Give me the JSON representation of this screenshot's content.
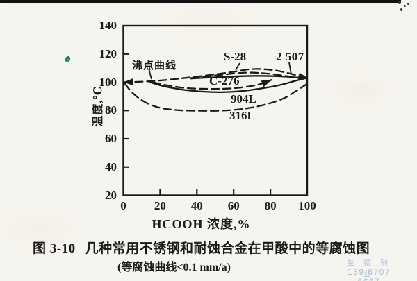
{
  "colors": {
    "ink": "#1a1a1a",
    "paper": "#f6f4ee",
    "watermark_blue": "#a9bede",
    "speck_green": "#2f9b77"
  },
  "chart_data": {
    "type": "line",
    "title": "",
    "xlabel": "HCOOH 浓度,%",
    "ylabel": "温度,℃",
    "xlim": [
      0,
      100
    ],
    "ylim": [
      20,
      140
    ],
    "xticks": [
      0,
      20,
      40,
      60,
      80,
      100
    ],
    "yticks": [
      140,
      120,
      100,
      80,
      60,
      40,
      20
    ],
    "grid": false,
    "legend": "labels-on-curves",
    "note": "iso-corrosion curves < 0.1 mm/a in formic acid; x = HCOOH concentration %, y = temperature °C",
    "series": [
      {
        "id": "boiling",
        "label": "沸点曲线",
        "style": "dashed",
        "arrow_start": true,
        "arrow_end": true,
        "points": [
          [
            0,
            100
          ],
          [
            8,
            100.3
          ],
          [
            18,
            101
          ],
          [
            30,
            102.5
          ],
          [
            45,
            104.8
          ],
          [
            58,
            107
          ],
          [
            70,
            109.3
          ],
          [
            80,
            108.8
          ],
          [
            88,
            107
          ],
          [
            95,
            104.6
          ],
          [
            100.5,
            102.7
          ]
        ]
      },
      {
        "id": "s28",
        "label": "S-28",
        "style": "dashed",
        "points": [
          [
            37,
            103
          ],
          [
            46,
            104.3
          ],
          [
            56,
            105.6
          ],
          [
            66,
            106.8
          ],
          [
            76,
            106.4
          ],
          [
            85,
            105
          ],
          [
            92,
            103.7
          ],
          [
            96,
            103.1
          ]
        ]
      },
      {
        "id": "2507",
        "label": "2 507",
        "style": "solid",
        "points": [
          [
            36.5,
            102.6
          ],
          [
            48,
            103.4
          ],
          [
            60,
            104.1
          ],
          [
            72,
            104.5
          ],
          [
            82,
            104.3
          ],
          [
            90,
            103.8
          ],
          [
            97,
            103
          ],
          [
            99.5,
            102.7
          ]
        ]
      },
      {
        "id": "c276",
        "label": "C-276",
        "style": "dashed",
        "arrow_end": true,
        "points": [
          [
            16,
            100
          ],
          [
            24,
            97.8
          ],
          [
            34,
            95.9
          ],
          [
            46,
            95.3
          ],
          [
            57,
            95.5
          ],
          [
            66,
            96.6
          ],
          [
            73,
            98.2
          ],
          [
            78,
            100.2
          ],
          [
            80.5,
            101.6
          ]
        ]
      },
      {
        "id": "904l",
        "label": "904L",
        "style": "solid",
        "points": [
          [
            14.5,
            100
          ],
          [
            22,
            97.2
          ],
          [
            32,
            94.8
          ],
          [
            44,
            93.3
          ],
          [
            55,
            93
          ],
          [
            66,
            94
          ],
          [
            77,
            96
          ],
          [
            86,
            98.3
          ],
          [
            93,
            100.8
          ],
          [
            98.5,
            102.6
          ]
        ]
      },
      {
        "id": "316l",
        "label": "316L",
        "style": "dashed",
        "points": [
          [
            0.8,
            99
          ],
          [
            5,
            92.5
          ],
          [
            11,
            86.5
          ],
          [
            19,
            82.2
          ],
          [
            29,
            80.3
          ],
          [
            42,
            79.8
          ],
          [
            55,
            80
          ],
          [
            67,
            81.5
          ],
          [
            78,
            84.5
          ],
          [
            87,
            88.5
          ],
          [
            93,
            93
          ],
          [
            97.5,
            96.8
          ],
          [
            100,
            98.8
          ]
        ]
      }
    ]
  },
  "figure": {
    "number": "图 3-10",
    "caption": "几种常用不锈钢和耐蚀合金在甲酸中的等腐蚀图",
    "subcaption": "(等腐蚀曲线<0.1 mm/a)"
  },
  "watermark": {
    "line1": "至 德 钢 业",
    "line2": "139 6707 6667"
  }
}
